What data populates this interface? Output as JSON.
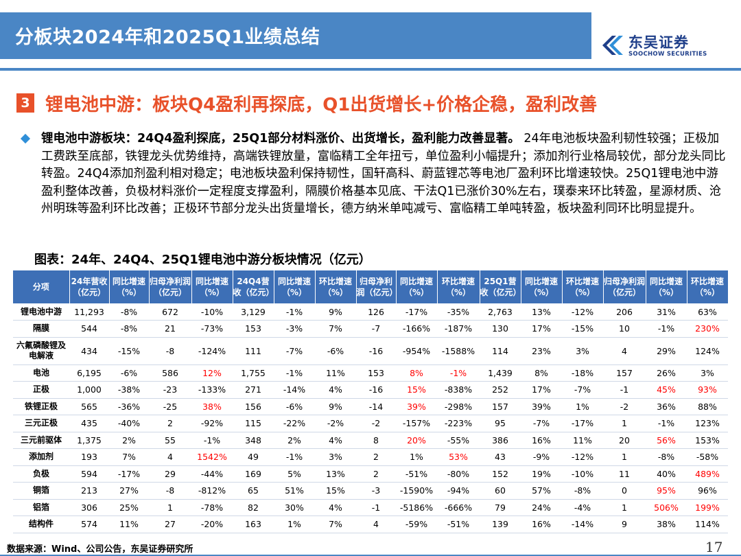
{
  "header": {
    "title": "分板块2024年和2025Q1业绩总结",
    "logo_cn": "东吴证券",
    "logo_en": "SOOCHOW SECURITIES",
    "accent": "#4a86c5"
  },
  "section": {
    "number": "3",
    "title": "锂电池中游：板块Q4盈利再探底，Q1出货增长+价格企稳，盈利改善",
    "color": "#e8512a"
  },
  "bullet": {
    "icon": "diamond-bullet-icon",
    "lead": "锂电池中游板块：24Q4盈利探底，25Q1部分材料涨价、出货增长，盈利能力改善显著。",
    "body": "24年电池板块盈利韧性较强；正极加工费跌至底部，铁锂龙头优势维持，高端铁锂放量，富临精工全年扭亏，单位盈利小幅提升；添加剂行业格局较优，部分龙头同比转盈。24Q4添加剂盈利相对稳定；电池板块盈利保持韧性，国轩高科、蔚蓝锂芯等电池厂盈利环比增速较快。25Q1锂电池中游盈利整体改善，负极材料涨价一定程度支撑盈利，隔膜价格基本见底、干法Q1已涨价30%左右，璞泰来环比转盈，星源材质、沧州明珠等盈利环比改善；正极环节部分龙头出货量增长，德方纳米单吨减亏、富临精工单吨转盈，板块盈利同环比明显提升。"
  },
  "figure": {
    "title": "图表：24年、24Q4、25Q1锂电池中游分板块情况（亿元）",
    "headers": [
      "分项",
      "24年营收（亿元）",
      "同比增速（%）",
      "归母净利润（亿元）",
      "同比增速（%）",
      "24Q4营收（亿元）",
      "同比增速（%）",
      "环比增速（%）",
      "归母净利润（亿元）",
      "同比增速（%）",
      "环比增速（%）",
      "25Q1营收（亿元）",
      "同比增速（%）",
      "环比增速（%）",
      "归母净利润（亿元）",
      "同比增速（%）",
      "环比增速（%）"
    ],
    "rows": [
      {
        "seg": "锂电池中游",
        "cells": [
          "11,293",
          "-8%",
          "672",
          "-10%",
          "3,129",
          "-1%",
          "9%",
          "126",
          "-17%",
          "-35%",
          "2,763",
          "13%",
          "-12%",
          "206",
          "31%",
          "63%"
        ],
        "red": [],
        "tall": false
      },
      {
        "seg": "隔膜",
        "cells": [
          "544",
          "-8%",
          "21",
          "-73%",
          "153",
          "-3%",
          "7%",
          "-7",
          "-166%",
          "-187%",
          "130",
          "17%",
          "-15%",
          "10",
          "-1%",
          "230%"
        ],
        "red": [
          15
        ],
        "tall": false
      },
      {
        "seg": "六氟磷酸锂及电解液",
        "cells": [
          "434",
          "-15%",
          "-8",
          "-124%",
          "111",
          "-7%",
          "-6%",
          "-16",
          "-954%",
          "-1588%",
          "114",
          "23%",
          "3%",
          "4",
          "29%",
          "124%"
        ],
        "red": [],
        "tall": true
      },
      {
        "seg": "电池",
        "cells": [
          "6,195",
          "-6%",
          "586",
          "12%",
          "1,755",
          "-1%",
          "11%",
          "153",
          "8%",
          "-1%",
          "1,439",
          "8%",
          "-18%",
          "157",
          "26%",
          "3%"
        ],
        "red": [
          3,
          8,
          9
        ],
        "tall": false
      },
      {
        "seg": "正极",
        "cells": [
          "1,000",
          "-38%",
          "-23",
          "-133%",
          "271",
          "-14%",
          "4%",
          "-16",
          "15%",
          "-838%",
          "252",
          "17%",
          "-7%",
          "-1",
          "45%",
          "93%"
        ],
        "red": [
          8,
          14,
          15
        ],
        "tall": false
      },
      {
        "seg": "铁锂正极",
        "cells": [
          "565",
          "-36%",
          "-25",
          "38%",
          "156",
          "-6%",
          "9%",
          "-14",
          "39%",
          "-298%",
          "157",
          "39%",
          "1%",
          "-2",
          "36%",
          "88%"
        ],
        "red": [
          3,
          8
        ],
        "tall": false
      },
      {
        "seg": "三元正极",
        "cells": [
          "435",
          "-40%",
          "2",
          "-92%",
          "115",
          "-22%",
          "-2%",
          "-2",
          "-157%",
          "-223%",
          "95",
          "-7%",
          "-17%",
          "1",
          "-1%",
          "123%"
        ],
        "red": [],
        "tall": false
      },
      {
        "seg": "三元前驱体",
        "cells": [
          "1,375",
          "2%",
          "55",
          "-1%",
          "348",
          "2%",
          "4%",
          "8",
          "20%",
          "-55%",
          "386",
          "16%",
          "11%",
          "20",
          "56%",
          "153%"
        ],
        "red": [
          8,
          14
        ],
        "tall": false
      },
      {
        "seg": "添加剂",
        "cells": [
          "193",
          "7%",
          "4",
          "1542%",
          "49",
          "-1%",
          "3%",
          "2",
          "1%",
          "53%",
          "43",
          "-9%",
          "-12%",
          "1",
          "-8%",
          "-58%"
        ],
        "red": [
          3,
          9
        ],
        "tall": false
      },
      {
        "seg": "负极",
        "cells": [
          "594",
          "-17%",
          "29",
          "-44%",
          "169",
          "5%",
          "13%",
          "2",
          "-51%",
          "-80%",
          "152",
          "19%",
          "-10%",
          "11",
          "40%",
          "489%"
        ],
        "red": [
          15
        ],
        "tall": false
      },
      {
        "seg": "铜箔",
        "cells": [
          "213",
          "27%",
          "-8",
          "-812%",
          "65",
          "51%",
          "15%",
          "-3",
          "-1590%",
          "-94%",
          "60",
          "57%",
          "-8%",
          "0",
          "95%",
          "96%"
        ],
        "red": [
          14
        ],
        "tall": false
      },
      {
        "seg": "铝箔",
        "cells": [
          "306",
          "25%",
          "1",
          "-78%",
          "82",
          "30%",
          "4%",
          "-1",
          "-5186%",
          "-666%",
          "79",
          "24%",
          "-4%",
          "1",
          "506%",
          "199%"
        ],
        "red": [
          14,
          15
        ],
        "tall": false
      },
      {
        "seg": "结构件",
        "cells": [
          "574",
          "11%",
          "27",
          "-20%",
          "163",
          "1%",
          "7%",
          "4",
          "-59%",
          "-51%",
          "139",
          "16%",
          "-14%",
          "9",
          "38%",
          "114%"
        ],
        "red": [],
        "tall": false
      }
    ],
    "highlight_color": "#ff0000"
  },
  "footer": {
    "source": "数据来源：Wind、公司公告，东吴证券研究所",
    "page": "17"
  }
}
